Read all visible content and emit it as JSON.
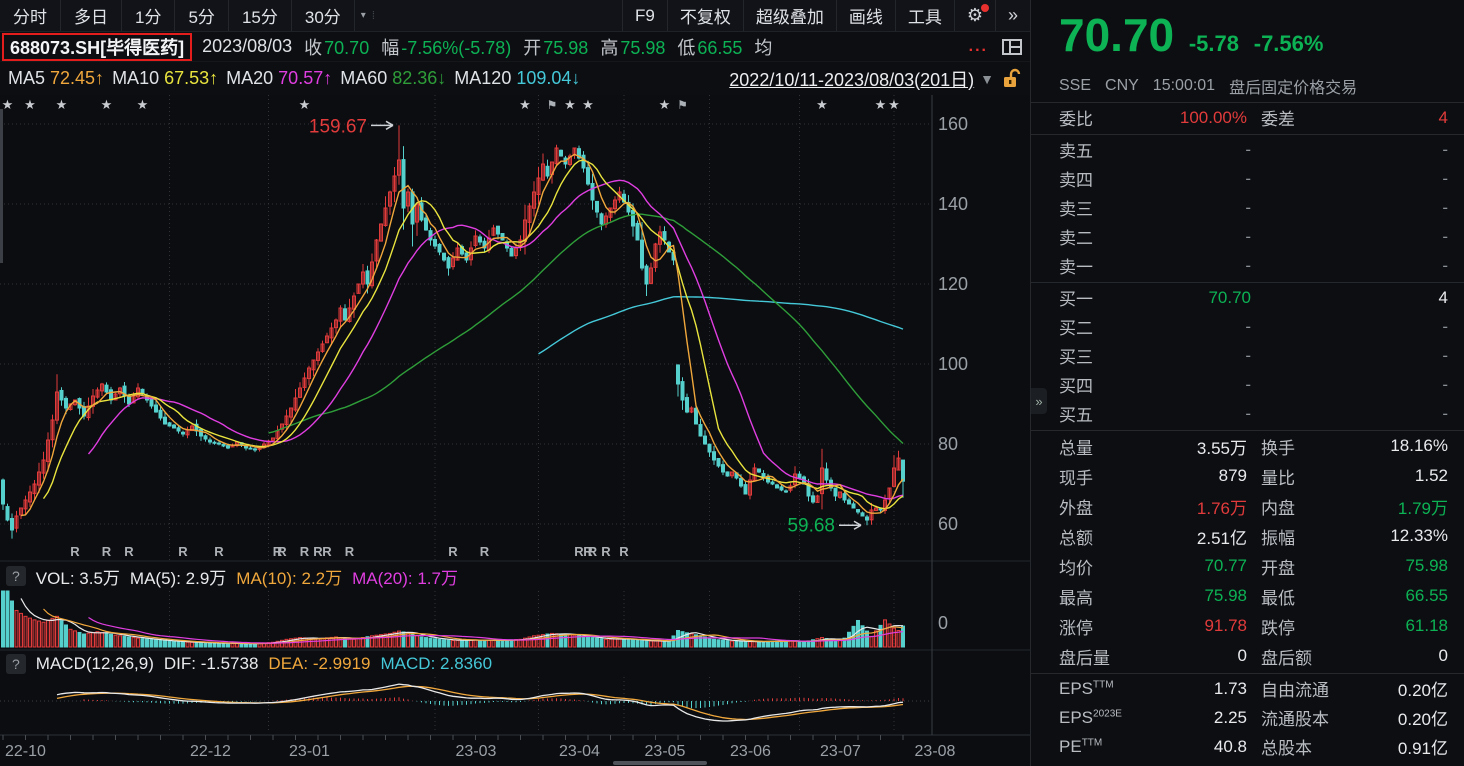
{
  "toolbar": {
    "tabs": [
      "分时",
      "多日",
      "1分",
      "5分",
      "15分",
      "30分"
    ],
    "tabs_dropdown": "▾",
    "right_items": [
      "F9",
      "不复权",
      "超级叠加",
      "画线",
      "工具"
    ],
    "gear_icon": "⚙",
    "expand_icon": "»"
  },
  "info_row": {
    "symbol": "688073.SH[毕得医药]",
    "date": "2023/08/03",
    "fields": [
      {
        "label": "收",
        "value": "70.70"
      },
      {
        "label": "幅",
        "value": "-7.56%(-5.78)"
      },
      {
        "label": "开",
        "value": "75.98"
      },
      {
        "label": "高",
        "value": "75.98"
      },
      {
        "label": "低",
        "value": "66.55"
      },
      {
        "label": "均",
        "value": ""
      }
    ],
    "more": "...",
    "value_color": "#0db254"
  },
  "ma_legend": {
    "items": [
      {
        "label": "MA5",
        "value": "72.45↑",
        "color": "#f0a73c"
      },
      {
        "label": "MA10",
        "value": "67.53↑",
        "color": "#e9e43e"
      },
      {
        "label": "MA20",
        "value": "70.57↑",
        "color": "#e03ee0"
      },
      {
        "label": "MA60",
        "value": "82.36↓",
        "color": "#2f9e39"
      },
      {
        "label": "MA120",
        "value": "109.04↓",
        "color": "#45c8d8"
      }
    ],
    "period": "2022/10/11-2023/08/03(201日)",
    "period_dropdown": "▼"
  },
  "vol_header": {
    "help": "?",
    "vol_label": "VOL:",
    "vol_value": "3.5万",
    "ma5_label": "MA(5):",
    "ma5_value": "2.9万",
    "ma10_label": "MA(10):",
    "ma10_value": "2.2万",
    "ma20_label": "MA(20):",
    "ma20_value": "1.7万"
  },
  "macd_header": {
    "help": "?",
    "title": "MACD(12,26,9)",
    "dif_label": "DIF:",
    "dif_value": "-1.5738",
    "dea_label": "DEA:",
    "dea_value": "-2.9919",
    "macd_label": "MACD:",
    "macd_value": "2.8360"
  },
  "quote_panel": {
    "price": "70.70",
    "change": "-5.78",
    "change_pct": "-7.56%",
    "exchange": "SSE",
    "currency": "CNY",
    "time": "15:00:01",
    "session_note": "盘后固定价格交易",
    "weibi_label": "委比",
    "weibi_value": "100.00%",
    "weicha_label": "委差",
    "weicha_value": "4",
    "asks": [
      {
        "label": "卖五",
        "price": "-",
        "qty": "-"
      },
      {
        "label": "卖四",
        "price": "-",
        "qty": "-"
      },
      {
        "label": "卖三",
        "price": "-",
        "qty": "-"
      },
      {
        "label": "卖二",
        "price": "-",
        "qty": "-"
      },
      {
        "label": "卖一",
        "price": "-",
        "qty": "-"
      }
    ],
    "bids": [
      {
        "label": "买一",
        "price": "70.70",
        "qty": "4",
        "price_color": "#0db254",
        "qty_color": "#e8eaec"
      },
      {
        "label": "买二",
        "price": "-",
        "qty": "-"
      },
      {
        "label": "买三",
        "price": "-",
        "qty": "-"
      },
      {
        "label": "买四",
        "price": "-",
        "qty": "-"
      },
      {
        "label": "买五",
        "price": "-",
        "qty": "-"
      }
    ],
    "stats": [
      {
        "l1": "总量",
        "v1": "3.55万",
        "c1": "whi",
        "l2": "换手",
        "v2": "18.16%",
        "c2": "whi"
      },
      {
        "l1": "现手",
        "v1": "879",
        "c1": "whi",
        "l2": "量比",
        "v2": "1.52",
        "c2": "whi"
      },
      {
        "l1": "外盘",
        "v1": "1.76万",
        "c1": "red",
        "l2": "内盘",
        "v2": "1.79万",
        "c2": "grn"
      },
      {
        "l1": "总额",
        "v1": "2.51亿",
        "c1": "whi",
        "l2": "振幅",
        "v2": "12.33%",
        "c2": "whi"
      },
      {
        "l1": "均价",
        "v1": "70.77",
        "c1": "grn",
        "l2": "开盘",
        "v2": "75.98",
        "c2": "grn"
      },
      {
        "l1": "最高",
        "v1": "75.98",
        "c1": "grn",
        "l2": "最低",
        "v2": "66.55",
        "c2": "grn"
      },
      {
        "l1": "涨停",
        "v1": "91.78",
        "c1": "red",
        "l2": "跌停",
        "v2": "61.18",
        "c2": "grn"
      },
      {
        "l1": "盘后量",
        "v1": "0",
        "c1": "whi",
        "l2": "盘后额",
        "v2": "0",
        "c2": "whi"
      }
    ],
    "fundamentals": [
      {
        "l1": "EPS",
        "sup1": "TTM",
        "v1": "1.73",
        "c1": "whi",
        "l2": "自由流通",
        "v2": "0.20亿",
        "c2": "whi"
      },
      {
        "l1": "EPS",
        "sup1": "2023E",
        "v1": "2.25",
        "c1": "whi",
        "l2": "流通股本",
        "v2": "0.20亿",
        "c2": "whi"
      },
      {
        "l1": "PE",
        "sup1": "TTM",
        "v1": "40.8",
        "c1": "whi",
        "l2": "总股本",
        "v2": "0.91亿",
        "c2": "whi"
      }
    ]
  },
  "chart_data": {
    "type": "candlestick",
    "title": "688073.SH 毕得医药 日K 不复权",
    "date_range": "2022/10/11-2023/08/03",
    "days": 201,
    "y_ticks": [
      160,
      140,
      120,
      100,
      80,
      60
    ],
    "vol_zero_label": "0",
    "x_labels": [
      {
        "label": "22-10",
        "day": 0
      },
      {
        "label": "22-12",
        "day": 37
      },
      {
        "label": "23-01",
        "day": 59
      },
      {
        "label": "23-03",
        "day": 96
      },
      {
        "label": "23-04",
        "day": 119
      },
      {
        "label": "23-05",
        "day": 138
      },
      {
        "label": "23-06",
        "day": 157
      },
      {
        "label": "23-07",
        "day": 177
      },
      {
        "label": "23-08",
        "day": 198
      }
    ],
    "annotations": [
      {
        "text": "159.67",
        "day": 88,
        "price": 159.67,
        "color": "#e23b3b"
      },
      {
        "text": "59.68",
        "day": 192,
        "price": 59.68,
        "color": "#0db254"
      }
    ],
    "last_day": {
      "open": 75.98,
      "high": 75.98,
      "low": 66.55,
      "close": 70.7,
      "prev_close": 76.48,
      "volume_lots": 35500
    },
    "indicator_values": {
      "ma5": 72.45,
      "ma10": 67.53,
      "ma20": 70.57,
      "ma60": 82.36,
      "ma120": 109.04,
      "vol": 35000,
      "vol_ma5": 29000,
      "vol_ma10": 22000,
      "vol_ma20": 17000,
      "dif": -1.5738,
      "dea": -2.9919,
      "macd_bar": 2.836
    },
    "colors": {
      "up": "#e23b3b",
      "down": "#55d0cc",
      "ma5": "#f0a73c",
      "ma10": "#e9e43e",
      "ma20": "#e03ee0",
      "ma60": "#2f9e39",
      "ma120": "#45c8d8",
      "grid": "#303439",
      "axis_text": "#9aa0a6"
    },
    "close_anchors": [
      [
        0,
        65
      ],
      [
        1,
        61
      ],
      [
        2,
        58.5
      ],
      [
        3,
        62
      ],
      [
        5,
        66
      ],
      [
        7,
        70
      ],
      [
        9,
        76
      ],
      [
        11,
        86
      ],
      [
        12,
        93
      ],
      [
        14,
        89
      ],
      [
        16,
        91
      ],
      [
        18,
        87
      ],
      [
        20,
        92
      ],
      [
        22,
        95
      ],
      [
        24,
        91
      ],
      [
        26,
        94
      ],
      [
        28,
        90
      ],
      [
        30,
        94
      ],
      [
        32,
        91
      ],
      [
        34,
        88
      ],
      [
        36,
        85
      ],
      [
        38,
        84
      ],
      [
        40,
        82.5
      ],
      [
        42,
        84.5
      ],
      [
        44,
        82
      ],
      [
        46,
        80.5
      ],
      [
        48,
        80
      ],
      [
        50,
        79
      ],
      [
        52,
        80.5
      ],
      [
        54,
        79
      ],
      [
        56,
        78.5
      ],
      [
        58,
        80
      ],
      [
        60,
        81.5
      ],
      [
        62,
        85
      ],
      [
        64,
        89
      ],
      [
        66,
        94
      ],
      [
        68,
        99
      ],
      [
        70,
        103
      ],
      [
        72,
        107
      ],
      [
        74,
        111
      ],
      [
        75,
        114
      ],
      [
        76,
        111
      ],
      [
        78,
        117
      ],
      [
        80,
        123
      ],
      [
        81,
        120
      ],
      [
        83,
        131
      ],
      [
        85,
        139
      ],
      [
        87,
        147
      ],
      [
        88,
        151
      ],
      [
        89,
        139
      ],
      [
        90,
        143
      ],
      [
        91,
        135
      ],
      [
        92,
        140
      ],
      [
        93,
        136
      ],
      [
        95,
        131
      ],
      [
        97,
        128
      ],
      [
        99,
        124
      ],
      [
        101,
        129
      ],
      [
        103,
        126
      ],
      [
        105,
        132
      ],
      [
        107,
        129
      ],
      [
        109,
        134
      ],
      [
        111,
        131
      ],
      [
        113,
        127
      ],
      [
        115,
        131
      ],
      [
        116,
        136
      ],
      [
        118,
        143
      ],
      [
        120,
        150
      ],
      [
        121,
        147
      ],
      [
        123,
        154
      ],
      [
        125,
        150
      ],
      [
        127,
        154
      ],
      [
        129,
        149
      ],
      [
        131,
        141
      ],
      [
        133,
        135
      ],
      [
        135,
        139
      ],
      [
        137,
        143
      ],
      [
        139,
        138
      ],
      [
        141,
        131
      ],
      [
        142,
        124
      ],
      [
        143,
        120
      ],
      [
        144,
        124
      ],
      [
        145,
        130
      ],
      [
        146,
        133
      ],
      [
        147,
        131
      ],
      [
        148,
        128
      ],
      [
        149,
        126
      ],
      [
        150,
        95
      ],
      [
        151,
        91
      ],
      [
        152,
        88
      ],
      [
        153,
        89
      ],
      [
        154,
        85
      ],
      [
        155,
        82
      ],
      [
        156,
        80
      ],
      [
        157,
        78
      ],
      [
        158,
        76
      ],
      [
        159,
        74.5
      ],
      [
        160,
        73
      ],
      [
        161,
        72
      ],
      [
        162,
        73
      ],
      [
        163,
        71.5
      ],
      [
        164,
        69.5
      ],
      [
        165,
        67.5
      ],
      [
        166,
        71
      ],
      [
        167,
        74
      ],
      [
        168,
        73
      ],
      [
        169,
        71.5
      ],
      [
        170,
        70.5
      ],
      [
        171,
        70
      ],
      [
        172,
        69
      ],
      [
        173,
        68.5
      ],
      [
        174,
        68
      ],
      [
        175,
        69.5
      ],
      [
        176,
        72.5
      ],
      [
        177,
        71.5
      ],
      [
        178,
        70
      ],
      [
        179,
        67
      ],
      [
        180,
        65.5
      ],
      [
        181,
        67
      ],
      [
        182,
        74
      ],
      [
        183,
        71
      ],
      [
        184,
        69
      ],
      [
        185,
        67
      ],
      [
        186,
        68
      ],
      [
        187,
        66
      ],
      [
        188,
        65
      ],
      [
        189,
        64
      ],
      [
        190,
        63
      ],
      [
        191,
        62
      ],
      [
        192,
        61
      ],
      [
        193,
        63.5
      ],
      [
        194,
        64
      ],
      [
        195,
        63.5
      ],
      [
        196,
        66
      ],
      [
        197,
        69
      ],
      [
        198,
        74
      ],
      [
        199,
        76.48
      ],
      [
        200,
        70.7
      ]
    ],
    "volume_anchors": [
      [
        0,
        120000
      ],
      [
        1,
        95000
      ],
      [
        2,
        78000
      ],
      [
        3,
        62000
      ],
      [
        5,
        52000
      ],
      [
        7,
        46000
      ],
      [
        9,
        42000
      ],
      [
        12,
        52000
      ],
      [
        15,
        30000
      ],
      [
        18,
        22000
      ],
      [
        21,
        26000
      ],
      [
        25,
        20000
      ],
      [
        30,
        15000
      ],
      [
        35,
        11000
      ],
      [
        40,
        8500
      ],
      [
        45,
        7000
      ],
      [
        50,
        6000
      ],
      [
        55,
        5500
      ],
      [
        60,
        8000
      ],
      [
        63,
        13000
      ],
      [
        66,
        16000
      ],
      [
        70,
        14000
      ],
      [
        74,
        17000
      ],
      [
        78,
        13000
      ],
      [
        82,
        19000
      ],
      [
        86,
        23000
      ],
      [
        88,
        27000
      ],
      [
        90,
        24000
      ],
      [
        93,
        17000
      ],
      [
        97,
        13000
      ],
      [
        100,
        11000
      ],
      [
        105,
        12000
      ],
      [
        110,
        11000
      ],
      [
        115,
        13000
      ],
      [
        118,
        19000
      ],
      [
        122,
        23000
      ],
      [
        126,
        21000
      ],
      [
        130,
        17000
      ],
      [
        134,
        13000
      ],
      [
        138,
        14000
      ],
      [
        141,
        11000
      ],
      [
        145,
        10000
      ],
      [
        148,
        9500
      ],
      [
        150,
        28000
      ],
      [
        152,
        24000
      ],
      [
        155,
        19000
      ],
      [
        158,
        13000
      ],
      [
        162,
        10000
      ],
      [
        166,
        9000
      ],
      [
        170,
        9500
      ],
      [
        174,
        11000
      ],
      [
        178,
        8500
      ],
      [
        182,
        16000
      ],
      [
        185,
        11000
      ],
      [
        187,
        15000
      ],
      [
        190,
        45000
      ],
      [
        193,
        18000
      ],
      [
        196,
        46000
      ],
      [
        198,
        32000
      ],
      [
        199,
        28000
      ],
      [
        200,
        35500
      ]
    ],
    "overrides": {
      "88": {
        "high": 159.67
      },
      "192": {
        "low": 59.68
      },
      "200": {
        "open": 75.98,
        "high": 75.98,
        "low": 66.55,
        "close": 70.7
      }
    },
    "star_days": [
      1,
      6,
      13,
      23,
      31,
      67,
      116,
      126,
      130,
      147,
      182,
      195,
      198
    ],
    "flag_days": [
      122,
      151
    ],
    "r_marker_days": [
      16,
      23,
      28,
      40,
      48,
      61,
      62,
      67,
      70,
      72,
      77,
      100,
      107,
      128,
      130,
      131,
      134,
      138
    ]
  }
}
